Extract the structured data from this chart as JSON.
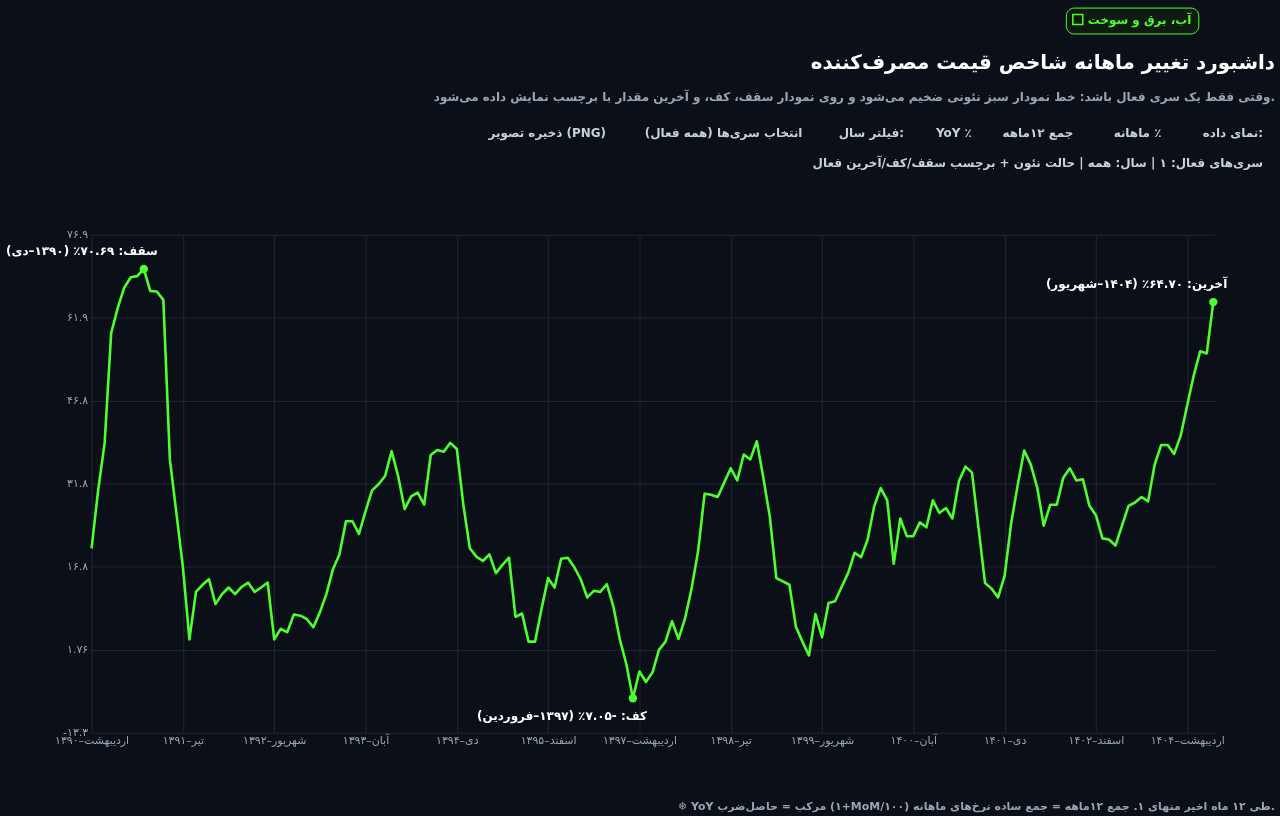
{
  "chart_data": {
    "type": "line",
    "title": "داشبورد تغییر ماهانه شاخص قیمت مصرف‌کننده",
    "subtitle": "وقتی فقط یک سری فعال باشد: خط نمودار سبز نئونی ضخیم می‌شود و روی نمودار سقف، کف، و آخرین مقدار با برچسب نمایش داده می‌شود.",
    "categories": [
      "۱۳۹۰–اردیبهشت",
      null,
      null,
      null,
      null,
      null,
      null,
      null,
      null,
      null,
      null,
      null,
      null,
      null,
      "۱۳۹۱–تیر",
      null,
      null,
      null,
      null,
      null,
      null,
      null,
      null,
      null,
      null,
      null,
      null,
      null,
      "۱۳۹۲–شهریور",
      null,
      null,
      null,
      null,
      null,
      null,
      null,
      null,
      null,
      null,
      null,
      null,
      null,
      "۱۳۹۳–آبان",
      null,
      null,
      null,
      null,
      null,
      null,
      null,
      null,
      null,
      null,
      null,
      null,
      null,
      "۱۳۹۴–دی",
      null,
      null,
      null,
      null,
      null,
      null,
      null,
      null,
      null,
      null,
      null,
      null,
      null,
      "۱۳۹۵–اسفند",
      null,
      null,
      null,
      null,
      null,
      null,
      null,
      null,
      null,
      null,
      null,
      null,
      null,
      "۱۳۹۷–اردیبهشت",
      null,
      null,
      null,
      null,
      null,
      null,
      null,
      null,
      null,
      null,
      null,
      null,
      null,
      "۱۳۹۸–تیر",
      null,
      null,
      null,
      null,
      null,
      null,
      null,
      null,
      null,
      null,
      null,
      null,
      null,
      "۱۳۹۹–شهریور",
      null,
      null,
      null,
      null,
      null,
      null,
      null,
      null,
      null,
      null,
      null,
      null,
      null,
      "۱۴۰۰–آبان",
      null,
      null,
      null,
      null,
      null,
      null,
      null,
      null,
      null,
      null,
      null,
      null,
      null,
      "۱۴۰۱–دی",
      null,
      null,
      null,
      null,
      null,
      null,
      null,
      null,
      null,
      null,
      null,
      null,
      null,
      "۱۴۰۲–اسفند",
      null,
      null,
      null,
      null,
      null,
      null,
      null,
      null,
      null,
      null,
      null,
      null,
      null,
      "۱۴۰۴–اردیبهشت",
      null,
      null,
      null,
      null
    ],
    "series": [
      {
        "name": "آب، برق و سوخت",
        "color": "#4cff2e",
        "values": [
          20.1,
          30.6,
          39.2,
          59.1,
          63.6,
          67.3,
          69.2,
          69.4,
          70.69,
          66.7,
          66.6,
          65.1,
          36.2,
          26.5,
          16.7,
          3.6,
          12.2,
          13.5,
          14.5,
          10.0,
          11.8,
          13.0,
          11.8,
          13.1,
          13.9,
          12.2,
          13.0,
          13.9,
          3.6,
          5.5,
          4.9,
          8.1,
          7.9,
          7.3,
          5.8,
          8.5,
          11.8,
          16.3,
          19.0,
          25.0,
          25.0,
          22.7,
          26.8,
          30.6,
          31.7,
          33.2,
          37.7,
          33.2,
          27.2,
          29.5,
          30.2,
          28.0,
          37.0,
          37.9,
          37.6,
          39.2,
          38.1,
          28.0,
          20.1,
          18.6,
          17.8,
          19.0,
          15.6,
          17.1,
          18.4,
          7.7,
          8.3,
          3.2,
          3.2,
          9.2,
          14.7,
          13.0,
          18.2,
          18.4,
          16.7,
          14.5,
          11.2,
          12.4,
          12.2,
          13.6,
          9.6,
          3.6,
          -0.9,
          -7.05,
          -2.2,
          -4.1,
          -2.4,
          1.7,
          3.2,
          6.9,
          3.7,
          7.4,
          12.8,
          19.6,
          30.0,
          29.8,
          29.4,
          32.0,
          34.6,
          32.4,
          37.1,
          36.2,
          39.5,
          32.9,
          25.8,
          14.7,
          14.1,
          13.5,
          5.9,
          3.2,
          0.7,
          8.2,
          4.0,
          10.2,
          10.5,
          13.1,
          15.6,
          19.3,
          18.5,
          21.7,
          27.7,
          31.0,
          28.8,
          17.3,
          25.5,
          22.3,
          22.3,
          24.8,
          23.9,
          28.8,
          26.5,
          27.4,
          25.5,
          32.3,
          34.9,
          33.8,
          23.8,
          13.8,
          12.8,
          11.2,
          15.1,
          24.6,
          31.5,
          37.8,
          35.3,
          31.1,
          24.2,
          28.0,
          28.0,
          32.9,
          34.6,
          32.4,
          32.6,
          27.8,
          26.1,
          21.9,
          21.7,
          20.6,
          24.2,
          27.8,
          28.4,
          29.4,
          28.6,
          35.2,
          38.8,
          38.8,
          37.2,
          40.5,
          46.0,
          51.4,
          55.8,
          55.4,
          64.7
        ]
      }
    ],
    "ylim": [
      -13.3,
      76.9
    ],
    "yticks": [
      {
        "value": 76.9,
        "label": "۷۶.۹"
      },
      {
        "value": 61.87,
        "label": "۶۱.۹"
      },
      {
        "value": 46.83,
        "label": "۴۶.۸"
      },
      {
        "value": 31.8,
        "label": "۳۱.۸"
      },
      {
        "value": 16.77,
        "label": "۱۶.۸"
      },
      {
        "value": 1.76,
        "label": "۱.۷۶"
      },
      {
        "value": -13.3,
        "label": "-۱۳.۳"
      }
    ],
    "grid": true,
    "legend": "top right",
    "annotations": [
      "سقف: ۷۰.۶۹٪ (۱۳۹۰–دی)",
      "کف: -۷.۰۵٪ (۱۳۹۷–فروردین)",
      "آخرین: ۶۴.۷۰٪ (۱۴۰۴–شهریور)",
      "نمای داده:",
      "ماهانه ٪",
      "جمع ۱۲ماهه",
      "YoY ٪",
      "فیلتر سال:",
      "انتخاب سری‌ها (همه فعال)",
      "ذخیره تصویر (PNG)",
      "سری‌های فعال: ۱ | سال: همه | حالت نئون + برچسب سقف/کف/آخرین فعال",
      "❄ YoY مرکب = حاصل‌ضرب (۱+MoM/۱۰۰) طی ۱۲ ماه اخیر منهای ۱. جمع ۱۲ماهه = جمع ساده نرخ‌های ماهانه."
    ]
  }
}
